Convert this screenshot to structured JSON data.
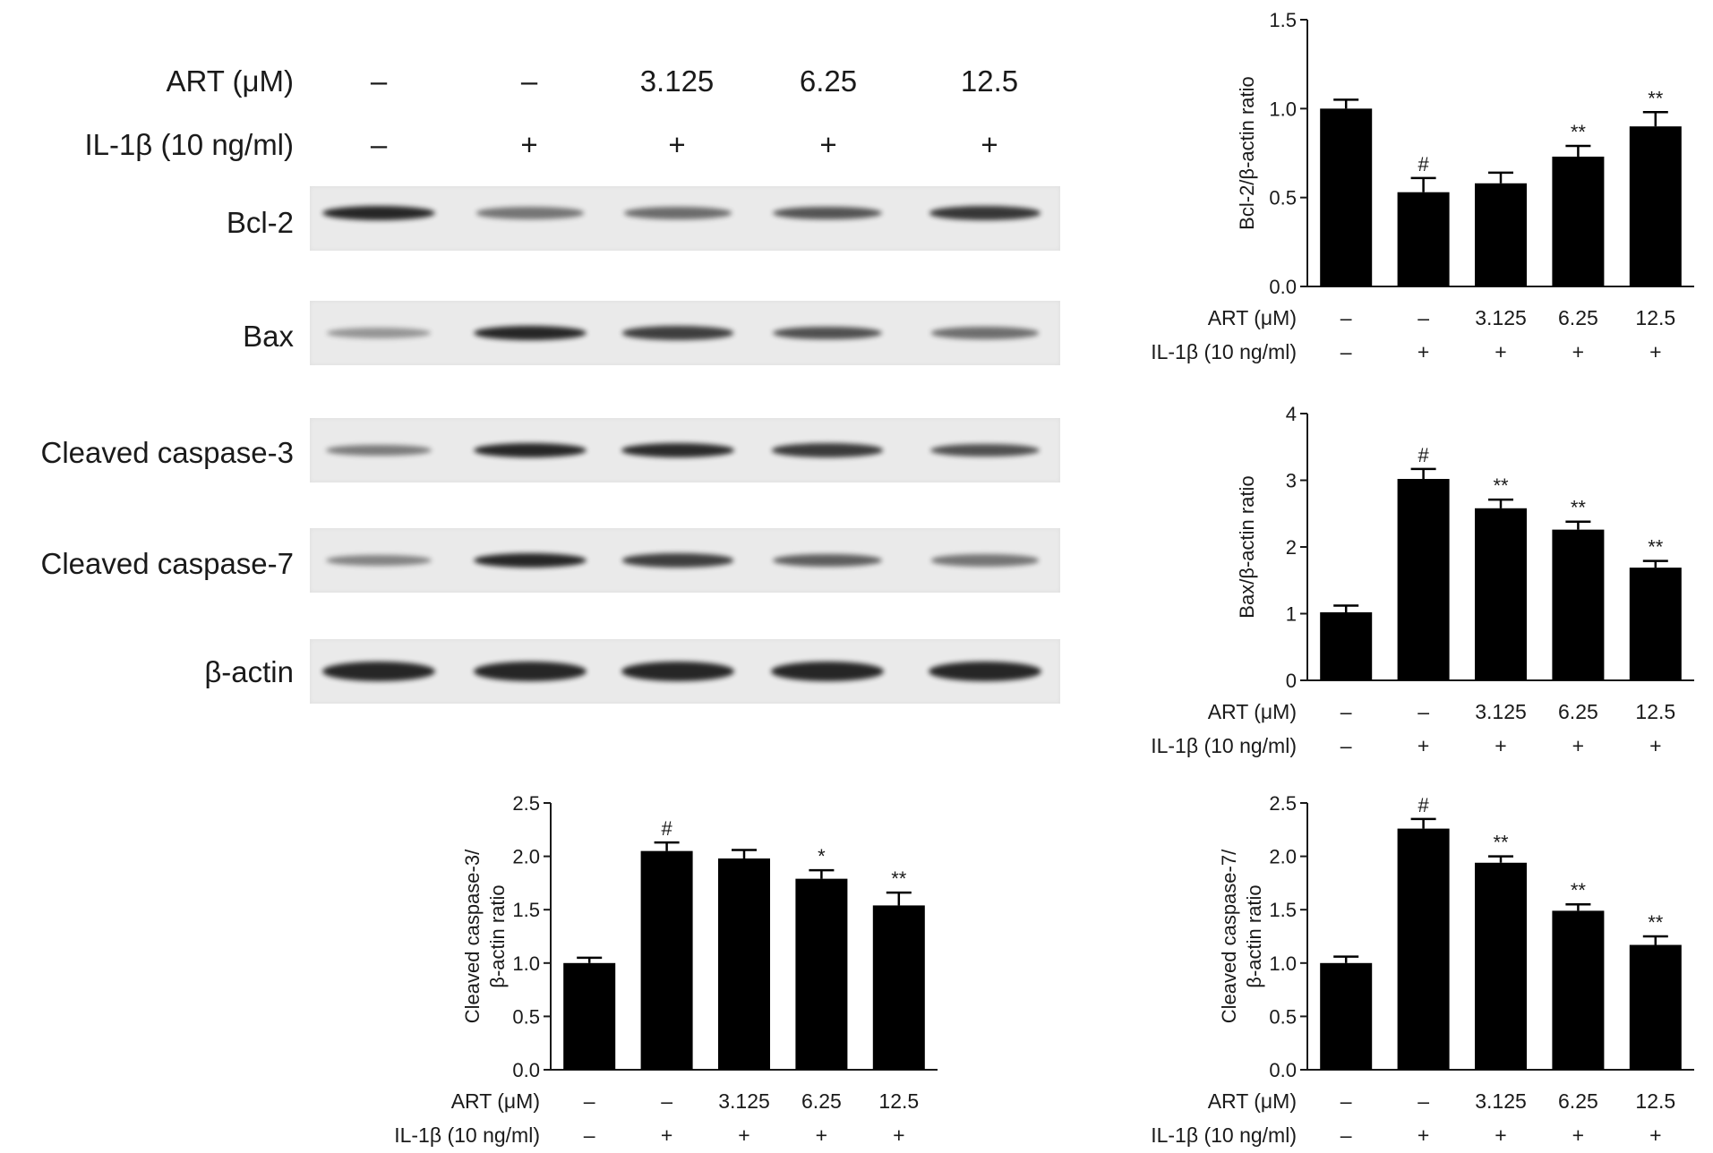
{
  "western_blot": {
    "header": {
      "art_label": "ART (μM)",
      "il_label": "IL-1β (10 ng/ml)",
      "art_values": [
        "–",
        "–",
        "3.125",
        "6.25",
        "12.5"
      ],
      "il_values": [
        "–",
        "+",
        "+",
        "+",
        "+"
      ]
    },
    "rows": [
      {
        "label": "Bcl-2",
        "intensity": [
          1.0,
          0.53,
          0.58,
          0.73,
          0.9
        ]
      },
      {
        "label": "Bax",
        "intensity": [
          0.33,
          1.0,
          0.85,
          0.75,
          0.56
        ]
      },
      {
        "label": "Cleaved caspase-3",
        "intensity": [
          0.49,
          1.0,
          0.97,
          0.87,
          0.75
        ]
      },
      {
        "label": "Cleaved caspase-7",
        "intensity": [
          0.44,
          1.0,
          0.85,
          0.66,
          0.52
        ]
      },
      {
        "label": "β-actin",
        "intensity": [
          1.0,
          1.0,
          1.0,
          1.0,
          1.0
        ]
      }
    ],
    "colors": {
      "band": "#1c1c1c",
      "membrane": "#eaeaea"
    }
  },
  "chart_data": [
    {
      "type": "bar",
      "ylabel_lines": [
        "Bcl-2/β-actin ratio"
      ],
      "ylim": [
        0,
        1.5
      ],
      "yticks": [
        "0.0",
        "0.5",
        "1.0",
        "1.5"
      ],
      "categories": [
        "1",
        "2",
        "3",
        "4",
        "5"
      ],
      "values": [
        1.0,
        0.53,
        0.58,
        0.73,
        0.9
      ],
      "errors": [
        0.05,
        0.08,
        0.06,
        0.06,
        0.08
      ],
      "annotations": [
        "",
        "#",
        "",
        "**",
        "**"
      ],
      "art_label": "ART (μM)",
      "il_label": "IL-1β (10 ng/ml)",
      "art_values": [
        "–",
        "–",
        "3.125",
        "6.25",
        "12.5"
      ],
      "il_values": [
        "–",
        "+",
        "+",
        "+",
        "+"
      ],
      "grid": false
    },
    {
      "type": "bar",
      "ylabel_lines": [
        "Bax/β-actin ratio"
      ],
      "ylim": [
        0,
        4
      ],
      "yticks": [
        "0",
        "1",
        "2",
        "3",
        "4"
      ],
      "categories": [
        "1",
        "2",
        "3",
        "4",
        "5"
      ],
      "values": [
        1.02,
        3.02,
        2.58,
        2.26,
        1.69
      ],
      "errors": [
        0.1,
        0.15,
        0.13,
        0.12,
        0.1
      ],
      "annotations": [
        "",
        "#",
        "**",
        "**",
        "**"
      ],
      "art_label": "ART (μM)",
      "il_label": "IL-1β (10 ng/ml)",
      "art_values": [
        "–",
        "–",
        "3.125",
        "6.25",
        "12.5"
      ],
      "il_values": [
        "–",
        "+",
        "+",
        "+",
        "+"
      ],
      "grid": false
    },
    {
      "type": "bar",
      "ylabel_lines": [
        "Cleaved caspase-3/",
        "β-actin ratio"
      ],
      "ylim": [
        0,
        2.5
      ],
      "yticks": [
        "0.0",
        "0.5",
        "1.0",
        "1.5",
        "2.0",
        "2.5"
      ],
      "categories": [
        "1",
        "2",
        "3",
        "4",
        "5"
      ],
      "values": [
        1.0,
        2.05,
        1.98,
        1.79,
        1.54
      ],
      "errors": [
        0.05,
        0.08,
        0.08,
        0.08,
        0.12
      ],
      "annotations": [
        "",
        "#",
        "",
        "*",
        "**"
      ],
      "art_label": "ART (μM)",
      "il_label": "IL-1β (10 ng/ml)",
      "art_values": [
        "–",
        "–",
        "3.125",
        "6.25",
        "12.5"
      ],
      "il_values": [
        "–",
        "+",
        "+",
        "+",
        "+"
      ],
      "grid": false
    },
    {
      "type": "bar",
      "ylabel_lines": [
        "Cleaved caspase-7/",
        "β-actin ratio"
      ],
      "ylim": [
        0,
        2.5
      ],
      "yticks": [
        "0.0",
        "0.5",
        "1.0",
        "1.5",
        "2.0",
        "2.5"
      ],
      "categories": [
        "1",
        "2",
        "3",
        "4",
        "5"
      ],
      "values": [
        1.0,
        2.26,
        1.94,
        1.49,
        1.17
      ],
      "errors": [
        0.06,
        0.09,
        0.06,
        0.06,
        0.08
      ],
      "annotations": [
        "",
        "#",
        "**",
        "**",
        "**"
      ],
      "art_label": "ART (μM)",
      "il_label": "IL-1β (10 ng/ml)",
      "art_values": [
        "–",
        "–",
        "3.125",
        "6.25",
        "12.5"
      ],
      "il_values": [
        "–",
        "+",
        "+",
        "+",
        "+"
      ],
      "grid": false
    }
  ]
}
